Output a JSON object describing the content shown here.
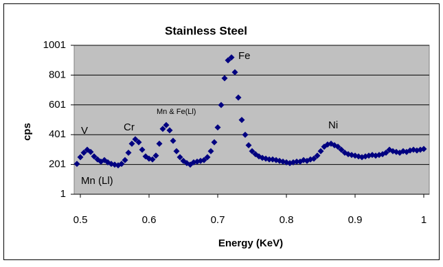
{
  "chart_data": {
    "type": "scatter",
    "title": "Stainless Steel",
    "x_label": "Energy (KeV)",
    "y_label": "cps",
    "annotations": [
      "V",
      "Cr",
      "Mn & Fe(Ll)",
      "Fe",
      "Ni",
      "Mn (Ll)"
    ],
    "color": "#000080",
    "x": [
      0.495,
      0.5,
      0.505,
      0.51,
      0.515,
      0.52,
      0.525,
      0.53,
      0.535,
      0.54,
      0.545,
      0.55,
      0.555,
      0.56,
      0.565,
      0.57,
      0.575,
      0.58,
      0.585,
      0.59,
      0.595,
      0.6,
      0.605,
      0.61,
      0.615,
      0.62,
      0.625,
      0.63,
      0.635,
      0.64,
      0.645,
      0.65,
      0.655,
      0.66,
      0.665,
      0.67,
      0.675,
      0.68,
      0.685,
      0.69,
      0.695,
      0.7,
      0.705,
      0.71,
      0.715,
      0.72,
      0.725,
      0.73,
      0.735,
      0.74,
      0.745,
      0.75,
      0.755,
      0.76,
      0.765,
      0.77,
      0.775,
      0.78,
      0.785,
      0.79,
      0.795,
      0.8,
      0.805,
      0.81,
      0.815,
      0.82,
      0.825,
      0.83,
      0.835,
      0.84,
      0.845,
      0.85,
      0.855,
      0.86,
      0.865,
      0.87,
      0.875,
      0.88,
      0.885,
      0.89,
      0.895,
      0.9,
      0.905,
      0.91,
      0.915,
      0.92,
      0.925,
      0.93,
      0.935,
      0.94,
      0.945,
      0.95,
      0.955,
      0.96,
      0.965,
      0.97,
      0.975,
      0.98,
      0.985,
      0.99,
      0.995,
      1.0
    ],
    "values": [
      205,
      250,
      280,
      300,
      285,
      255,
      235,
      220,
      230,
      215,
      205,
      200,
      195,
      205,
      230,
      280,
      340,
      370,
      350,
      300,
      255,
      240,
      235,
      260,
      340,
      440,
      465,
      430,
      360,
      290,
      250,
      225,
      210,
      200,
      215,
      220,
      225,
      230,
      250,
      290,
      350,
      450,
      600,
      780,
      900,
      920,
      820,
      650,
      500,
      400,
      330,
      290,
      270,
      255,
      245,
      240,
      235,
      235,
      230,
      225,
      220,
      215,
      210,
      215,
      220,
      220,
      230,
      225,
      235,
      240,
      260,
      290,
      320,
      335,
      340,
      330,
      320,
      300,
      280,
      270,
      265,
      260,
      255,
      250,
      255,
      260,
      265,
      260,
      265,
      270,
      280,
      300,
      290,
      285,
      280,
      290,
      285,
      295,
      300,
      295,
      300,
      305
    ],
    "xlim": [
      0.5,
      1
    ],
    "xticks": [
      0.5,
      0.6,
      0.7,
      0.8,
      0.9,
      1
    ],
    "ylim": [
      1,
      1001
    ],
    "yticks": [
      1,
      201,
      401,
      601,
      801,
      1001
    ],
    "grid": true
  }
}
